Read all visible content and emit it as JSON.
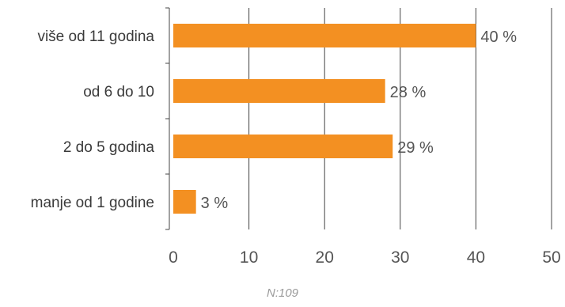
{
  "chart_data": {
    "type": "bar",
    "orientation": "horizontal",
    "categories": [
      "više od 11 godina",
      "od 6 do 10",
      "2 do 5 godina",
      "manje od 1 godine"
    ],
    "values": [
      40,
      28,
      29,
      3
    ],
    "data_labels": [
      "40 %",
      "28 %",
      "29 %",
      "3 %"
    ],
    "xlim": [
      0,
      50
    ],
    "xticks": [
      0,
      10,
      20,
      30,
      40,
      50
    ],
    "grid": "vertical",
    "legend": "none",
    "bar_color": "#F39022",
    "gridline_color": "#444444",
    "note": "N:109"
  }
}
